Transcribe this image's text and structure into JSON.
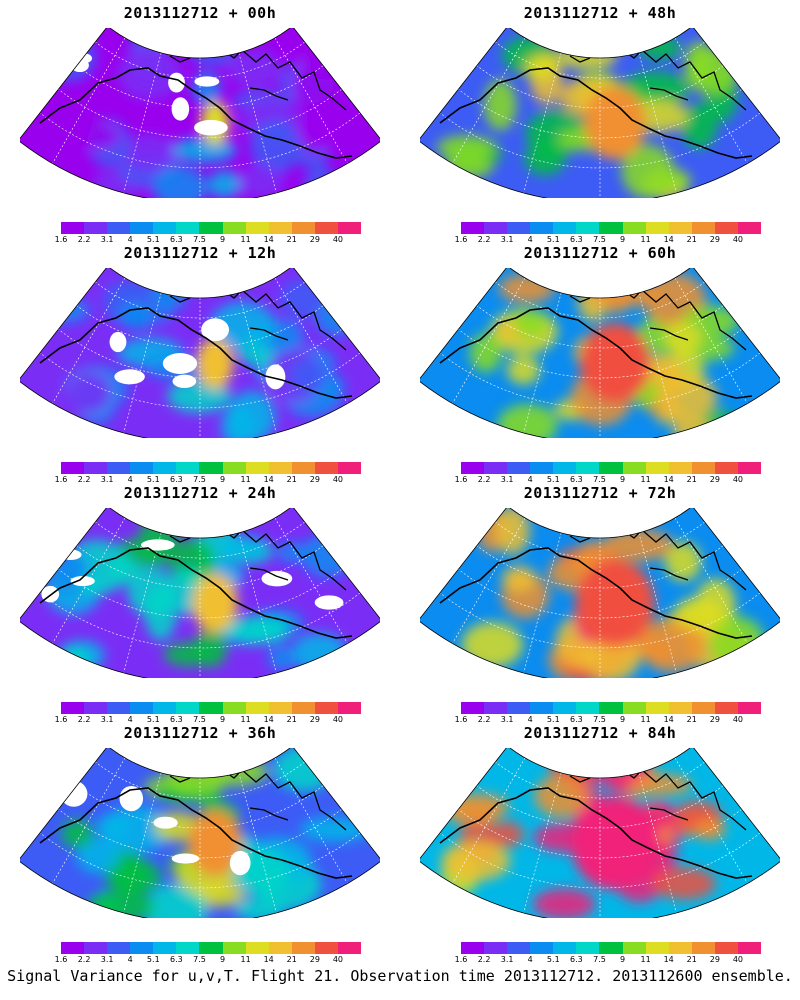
{
  "panels": [
    {
      "title": "2013112712 + 00h",
      "lead_hours": 0
    },
    {
      "title": "2013112712 + 48h",
      "lead_hours": 48
    },
    {
      "title": "2013112712 + 12h",
      "lead_hours": 12
    },
    {
      "title": "2013112712 + 60h",
      "lead_hours": 60
    },
    {
      "title": "2013112712 + 24h",
      "lead_hours": 24
    },
    {
      "title": "2013112712 + 72h",
      "lead_hours": 72
    },
    {
      "title": "2013112712 + 36h",
      "lead_hours": 36
    },
    {
      "title": "2013112712 + 84h",
      "lead_hours": 84
    }
  ],
  "colorbar": {
    "labels": [
      "1.6",
      "2.2",
      "3.1",
      "4",
      "5.1",
      "6.3",
      "7.5",
      "9",
      "11",
      "14",
      "21",
      "29",
      "40"
    ],
    "colors": [
      "#9900ee",
      "#7a2ef5",
      "#3c5cf5",
      "#0a8cf0",
      "#00b7e8",
      "#00d7c8",
      "#00c040",
      "#88dd22",
      "#dddd22",
      "#f0c030",
      "#f09030",
      "#f05040",
      "#f0207a"
    ]
  },
  "caption": "Signal Variance for u,v,T. Flight 21. Observation time 2013112712. 2013112600 ensemble."
}
